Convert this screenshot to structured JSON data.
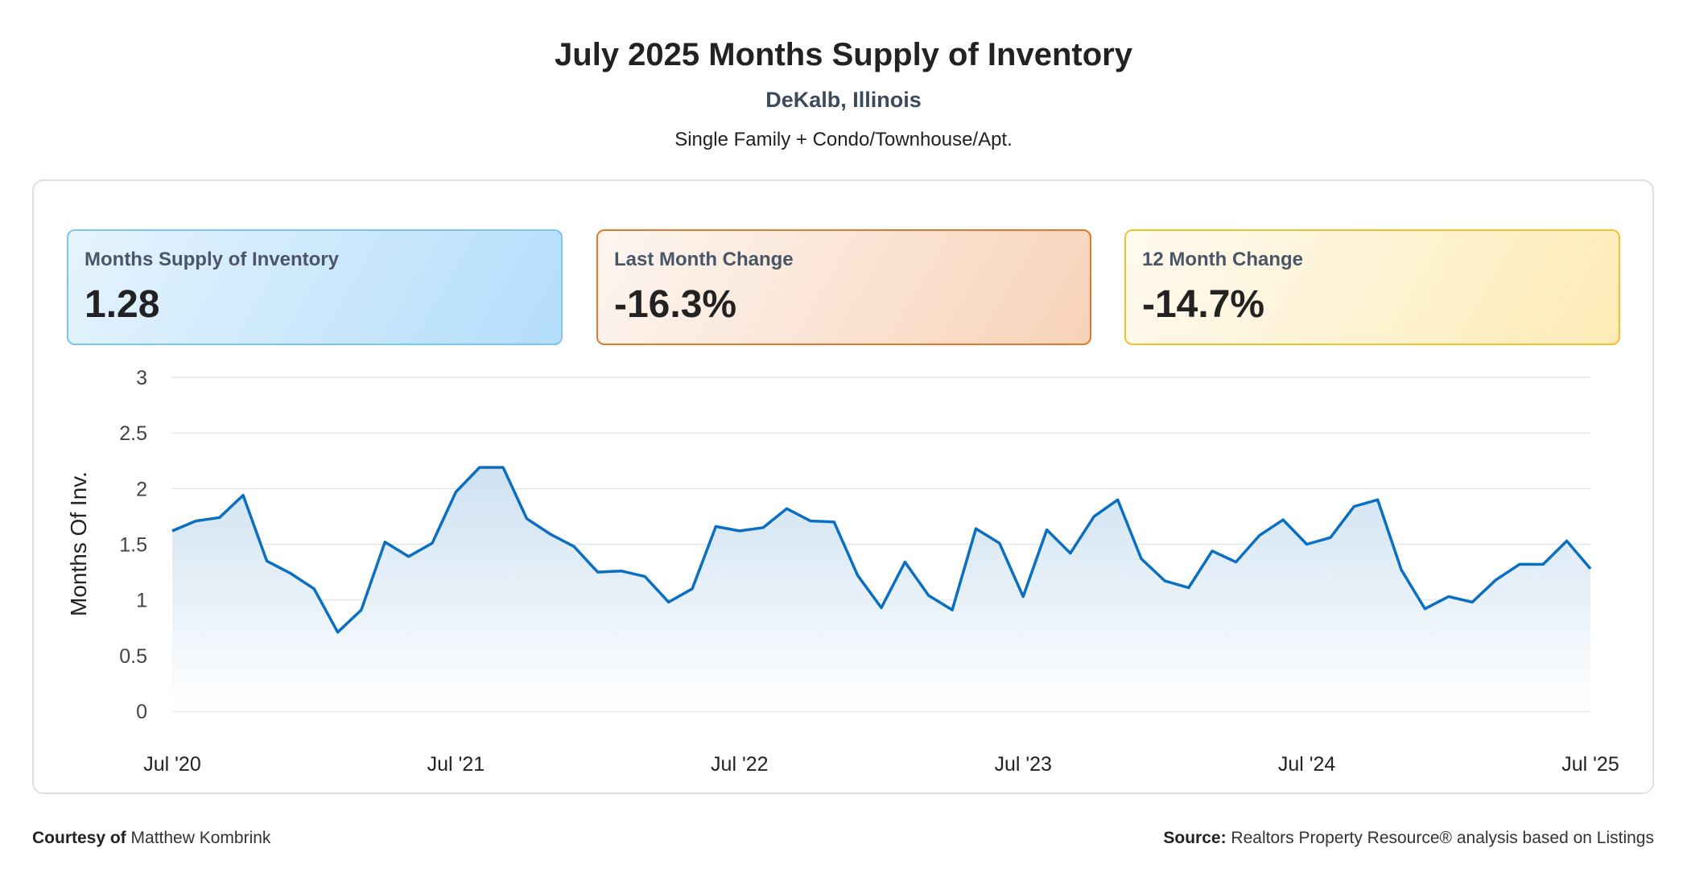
{
  "header": {
    "title": "July 2025 Months Supply of Inventory",
    "location": "DeKalb, Illinois",
    "property_types": "Single Family + Condo/Townhouse/Apt."
  },
  "cards": [
    {
      "label": "Months Supply of Inventory",
      "value": "1.28"
    },
    {
      "label": "Last Month Change",
      "value": "-16.3%"
    },
    {
      "label": "12 Month Change",
      "value": "-14.7%"
    }
  ],
  "footer": {
    "courtesy_label": "Courtesy of",
    "courtesy_name": "Matthew Kombrink",
    "source_label": "Source:",
    "source_text": "Realtors Property Resource® analysis based on Listings"
  },
  "colors": {
    "line": "#0a6fc2",
    "fill_top": "#cfe3f3",
    "grid": "#e2e6ea"
  },
  "chart_data": {
    "type": "area",
    "ylabel": "Months Of Inv.",
    "ylim": [
      0,
      3
    ],
    "yticks": [
      "0",
      "0.5",
      "1",
      "1.5",
      "2",
      "2.5",
      "3"
    ],
    "xtick_labels": [
      "Jul '20",
      "Jul '21",
      "Jul '22",
      "Jul '23",
      "Jul '24",
      "Jul '25"
    ],
    "x_start": "2020-07",
    "x_end": "2025-07",
    "values": [
      1.62,
      1.71,
      1.74,
      1.94,
      1.35,
      1.24,
      1.1,
      0.71,
      0.91,
      1.52,
      1.39,
      1.51,
      1.97,
      2.19,
      2.19,
      1.73,
      1.59,
      1.48,
      1.25,
      1.26,
      1.21,
      0.98,
      1.1,
      1.66,
      1.62,
      1.65,
      1.82,
      1.71,
      1.7,
      1.22,
      0.93,
      1.34,
      1.04,
      0.91,
      1.64,
      1.51,
      1.03,
      1.63,
      1.42,
      1.75,
      1.9,
      1.37,
      1.17,
      1.11,
      1.44,
      1.34,
      1.58,
      1.72,
      1.5,
      1.56,
      1.84,
      1.9,
      1.27,
      0.92,
      1.03,
      0.98,
      1.18,
      1.32,
      1.32,
      1.53,
      1.28
    ]
  }
}
